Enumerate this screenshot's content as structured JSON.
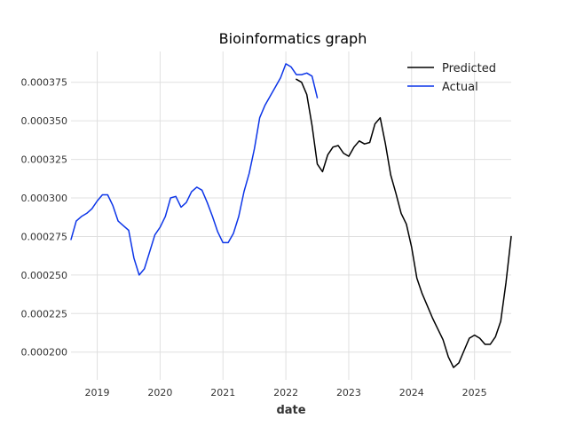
{
  "chart_data": {
    "type": "line",
    "title": "Bioinformatics graph",
    "xlabel": "date",
    "ylabel": "",
    "x_ticks": [
      "2019",
      "2020",
      "2021",
      "2022",
      "2023",
      "2024",
      "2025"
    ],
    "y_ticks": [
      "0.000200",
      "0.000225",
      "0.000250",
      "0.000275",
      "0.000300",
      "0.000325",
      "0.000350",
      "0.000375"
    ],
    "xlim": [
      "2018-08-01",
      "2025-08-01"
    ],
    "ylim": [
      0.000182,
      0.000395
    ],
    "grid": true,
    "legend_position": "top-right",
    "series": [
      {
        "name": "Predicted",
        "color": "#000000",
        "points": [
          [
            "2022-03-01",
            0.000377
          ],
          [
            "2022-04-01",
            0.000375
          ],
          [
            "2022-05-01",
            0.000367
          ],
          [
            "2022-06-01",
            0.000347
          ],
          [
            "2022-07-01",
            0.000322
          ],
          [
            "2022-08-01",
            0.000317
          ],
          [
            "2022-09-01",
            0.000328
          ],
          [
            "2022-10-01",
            0.000333
          ],
          [
            "2022-11-01",
            0.000334
          ],
          [
            "2022-12-01",
            0.000329
          ],
          [
            "2023-01-01",
            0.000327
          ],
          [
            "2023-02-01",
            0.000333
          ],
          [
            "2023-03-01",
            0.000337
          ],
          [
            "2023-04-01",
            0.000335
          ],
          [
            "2023-05-01",
            0.000336
          ],
          [
            "2023-06-01",
            0.000348
          ],
          [
            "2023-07-01",
            0.000352
          ],
          [
            "2023-08-01",
            0.000335
          ],
          [
            "2023-09-01",
            0.000315
          ],
          [
            "2023-10-01",
            0.000303
          ],
          [
            "2023-11-01",
            0.00029
          ],
          [
            "2023-12-01",
            0.000283
          ],
          [
            "2024-01-01",
            0.000268
          ],
          [
            "2024-02-01",
            0.000248
          ],
          [
            "2024-03-01",
            0.000238
          ],
          [
            "2024-04-01",
            0.00023
          ],
          [
            "2024-05-01",
            0.000222
          ],
          [
            "2024-06-01",
            0.000215
          ],
          [
            "2024-07-01",
            0.000208
          ],
          [
            "2024-08-01",
            0.000197
          ],
          [
            "2024-09-01",
            0.00019
          ],
          [
            "2024-10-01",
            0.000193
          ],
          [
            "2024-11-01",
            0.000201
          ],
          [
            "2024-12-01",
            0.000209
          ],
          [
            "2025-01-01",
            0.000211
          ],
          [
            "2025-02-01",
            0.000209
          ],
          [
            "2025-03-01",
            0.000205
          ],
          [
            "2025-04-01",
            0.000205
          ],
          [
            "2025-05-01",
            0.00021
          ],
          [
            "2025-06-01",
            0.00022
          ],
          [
            "2025-07-01",
            0.000245
          ],
          [
            "2025-08-01",
            0.000275
          ]
        ]
      },
      {
        "name": "Actual",
        "color": "#0c35e8",
        "points": [
          [
            "2018-08-01",
            0.000273
          ],
          [
            "2018-09-01",
            0.000285
          ],
          [
            "2018-10-01",
            0.000288
          ],
          [
            "2018-11-01",
            0.00029
          ],
          [
            "2018-12-01",
            0.000293
          ],
          [
            "2019-01-01",
            0.000298
          ],
          [
            "2019-02-01",
            0.000302
          ],
          [
            "2019-03-01",
            0.000302
          ],
          [
            "2019-04-01",
            0.000295
          ],
          [
            "2019-05-01",
            0.000285
          ],
          [
            "2019-06-01",
            0.000282
          ],
          [
            "2019-07-01",
            0.000279
          ],
          [
            "2019-08-01",
            0.000261
          ],
          [
            "2019-09-01",
            0.00025
          ],
          [
            "2019-10-01",
            0.000254
          ],
          [
            "2019-11-01",
            0.000265
          ],
          [
            "2019-12-01",
            0.000276
          ],
          [
            "2020-01-01",
            0.000281
          ],
          [
            "2020-02-01",
            0.000288
          ],
          [
            "2020-03-01",
            0.0003
          ],
          [
            "2020-04-01",
            0.000301
          ],
          [
            "2020-05-01",
            0.000294
          ],
          [
            "2020-06-01",
            0.000297
          ],
          [
            "2020-07-01",
            0.000304
          ],
          [
            "2020-08-01",
            0.000307
          ],
          [
            "2020-09-01",
            0.000305
          ],
          [
            "2020-10-01",
            0.000297
          ],
          [
            "2020-11-01",
            0.000288
          ],
          [
            "2020-12-01",
            0.000278
          ],
          [
            "2021-01-01",
            0.000271
          ],
          [
            "2021-02-01",
            0.000271
          ],
          [
            "2021-03-01",
            0.000277
          ],
          [
            "2021-04-01",
            0.000288
          ],
          [
            "2021-05-01",
            0.000304
          ],
          [
            "2021-06-01",
            0.000316
          ],
          [
            "2021-07-01",
            0.000332
          ],
          [
            "2021-08-01",
            0.000352
          ],
          [
            "2021-09-01",
            0.00036
          ],
          [
            "2021-10-01",
            0.000366
          ],
          [
            "2021-11-01",
            0.000372
          ],
          [
            "2021-12-01",
            0.000378
          ],
          [
            "2022-01-01",
            0.000387
          ],
          [
            "2022-02-01",
            0.000385
          ],
          [
            "2022-03-01",
            0.00038
          ],
          [
            "2022-04-01",
            0.00038
          ],
          [
            "2022-05-01",
            0.000381
          ],
          [
            "2022-06-01",
            0.000379
          ],
          [
            "2022-07-01",
            0.000365
          ]
        ]
      }
    ]
  }
}
